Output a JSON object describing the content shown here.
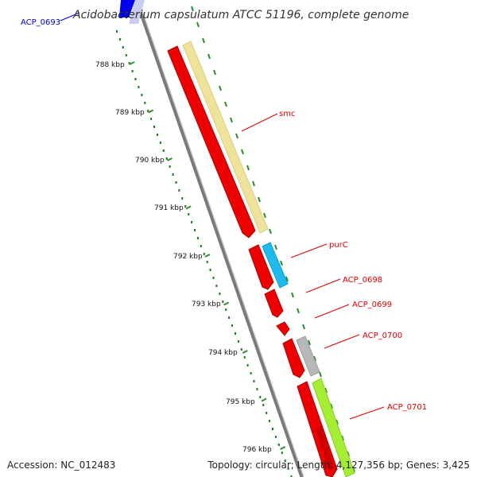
{
  "title": "Acidobacterium capsulatum ATCC 51196, complete genome",
  "accession_text": "Accession: NC_012483",
  "summary_text": "Topology: circular; Length: 4,127,356 bp; Genes: 3,425",
  "colors": {
    "backbone": "#7a7a7a",
    "scale_dots": "#1a7a1a",
    "scale_ticks": "#2e8b2e",
    "cds_red": "#ee0000",
    "label_red": "#dd0000",
    "label_blue": "#0000cc",
    "smc_band": "#ede39a",
    "purC_band": "#1fbbee",
    "gray_band": "#b8b8b8",
    "green_band": "#a6ee33",
    "blue_band": "#0000ee"
  },
  "scale_labels": [
    "788 kbp",
    "789 kbp",
    "790 kbp",
    "791 kbp",
    "792 kbp",
    "793 kbp",
    "794 kbp",
    "795 kbp",
    "796 kbp"
  ],
  "gene_labels": [
    {
      "key": "acp_0693",
      "text": "ACP_0693",
      "color": "blue"
    },
    {
      "key": "smc",
      "text": "smc",
      "color": "red"
    },
    {
      "key": "purc",
      "text": "purC",
      "color": "red"
    },
    {
      "key": "acp_0698",
      "text": "ACP_0698",
      "color": "red"
    },
    {
      "key": "acp_0699",
      "text": "ACP_0699",
      "color": "red"
    },
    {
      "key": "acp_0700",
      "text": "ACP_0700",
      "color": "red"
    },
    {
      "key": "acp_0701",
      "text": "ACP_0701",
      "color": "red"
    }
  ]
}
